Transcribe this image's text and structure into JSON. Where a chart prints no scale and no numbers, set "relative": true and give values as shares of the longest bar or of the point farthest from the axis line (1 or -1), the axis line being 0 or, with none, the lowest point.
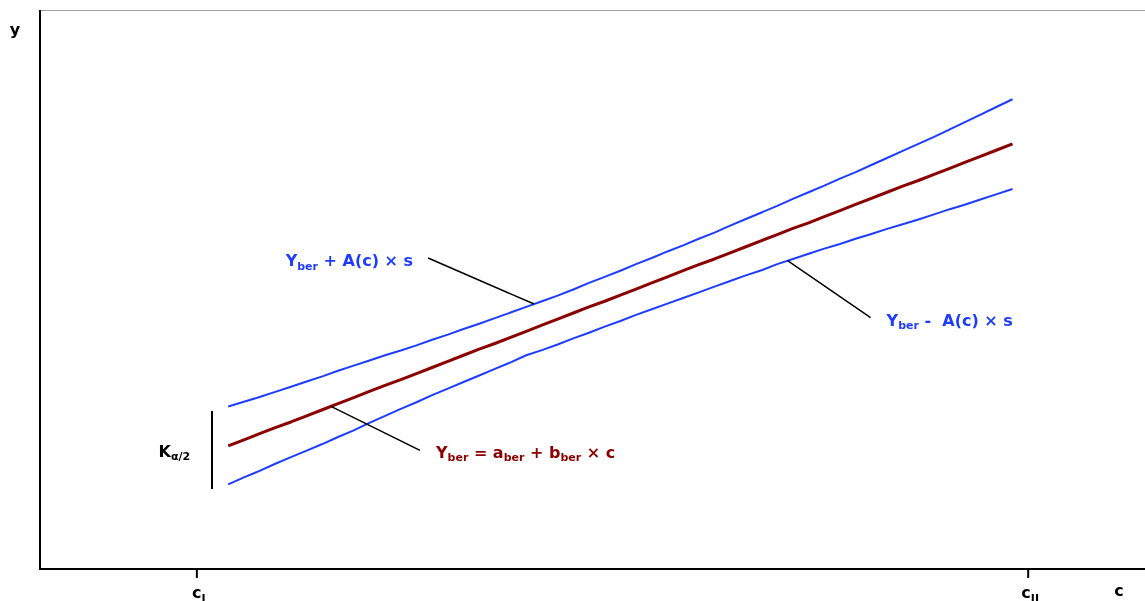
{
  "chart_data": {
    "type": "line",
    "relative": true,
    "xlabel": "c",
    "ylabel": "y",
    "marker": "none",
    "line_style": "solid",
    "categories": [
      null,
      null,
      null,
      null,
      null,
      null,
      null,
      null,
      null,
      null,
      "c$_{I}$",
      null,
      null,
      null,
      null,
      null,
      null,
      null,
      null,
      null,
      null,
      null,
      null,
      null,
      null,
      null,
      null,
      null,
      null,
      null,
      null,
      null,
      null,
      null,
      null,
      null,
      null,
      null,
      null,
      null,
      null,
      null,
      null,
      null,
      null,
      null,
      null,
      null,
      null,
      null,
      null,
      null,
      null,
      null,
      null,
      null,
      null,
      null,
      null,
      null,
      null,
      null,
      null,
      "c$_{II}$",
      null,
      null,
      null,
      null,
      null,
      null,
      null
    ],
    "series": [
      {
        "color": "#1e3cff",
        "values": [
          null,
          null,
          null,
          null,
          null,
          null,
          null,
          null,
          null,
          null,
          null,
          null,
          0.346,
          0.356,
          0.366,
          0.377,
          0.388,
          0.399,
          0.41,
          0.422,
          0.433,
          0.444,
          0.455,
          0.465,
          0.476,
          0.488,
          0.499,
          0.511,
          0.522,
          0.534,
          0.546,
          0.558,
          0.57,
          0.582,
          0.595,
          0.609,
          0.622,
          0.635,
          0.649,
          0.662,
          0.676,
          0.689,
          0.703,
          0.716,
          0.731,
          0.745,
          0.759,
          0.773,
          0.788,
          0.802,
          0.816,
          0.831,
          0.845,
          0.86,
          0.875,
          0.89,
          0.905,
          0.92,
          0.936,
          0.952,
          0.968,
          0.984,
          1,
          null,
          null,
          null,
          null,
          null,
          null,
          null,
          null
        ]
      },
      {
        "color": "#8b0000",
        "values": [
          null,
          null,
          null,
          null,
          null,
          null,
          null,
          null,
          null,
          null,
          null,
          null,
          0.262,
          0.275,
          0.288,
          0.301,
          0.313,
          0.326,
          0.339,
          0.352,
          0.365,
          0.378,
          0.391,
          0.403,
          0.416,
          0.429,
          0.442,
          0.455,
          0.468,
          0.48,
          0.493,
          0.506,
          0.519,
          0.532,
          0.545,
          0.558,
          0.57,
          0.583,
          0.596,
          0.609,
          0.622,
          0.635,
          0.648,
          0.66,
          0.673,
          0.686,
          0.699,
          0.712,
          0.725,
          0.737,
          0.75,
          0.763,
          0.776,
          0.789,
          0.802,
          0.815,
          0.827,
          0.84,
          0.853,
          0.866,
          0.879,
          0.892,
          0.905,
          null,
          null,
          null,
          null,
          null,
          null,
          null,
          null
        ]
      },
      {
        "color": "#1e3cff",
        "values": [
          null,
          null,
          null,
          null,
          null,
          null,
          null,
          null,
          null,
          null,
          null,
          null,
          0.18,
          0.195,
          0.209,
          0.224,
          0.238,
          0.252,
          0.266,
          0.281,
          0.295,
          0.311,
          0.326,
          0.341,
          0.355,
          0.37,
          0.384,
          0.398,
          0.412,
          0.426,
          0.44,
          0.455,
          0.466,
          0.478,
          0.491,
          0.503,
          0.516,
          0.528,
          0.541,
          0.553,
          0.565,
          0.577,
          0.589,
          0.601,
          0.613,
          0.625,
          0.636,
          0.649,
          0.66,
          0.671,
          0.682,
          0.692,
          0.703,
          0.713,
          0.724,
          0.734,
          0.744,
          0.755,
          0.766,
          0.776,
          0.787,
          0.798,
          0.809,
          null,
          null,
          null,
          null,
          null,
          null,
          null,
          null
        ]
      }
    ],
    "annotations": [
      "Y$_{ber}$ + A(c) × s",
      "Y$_{ber}$ -  A(c) × s",
      "Y$_{ber}$ = a$_{ber}$ + b$_{ber}$ × c",
      "K$_{α/2}$"
    ]
  }
}
